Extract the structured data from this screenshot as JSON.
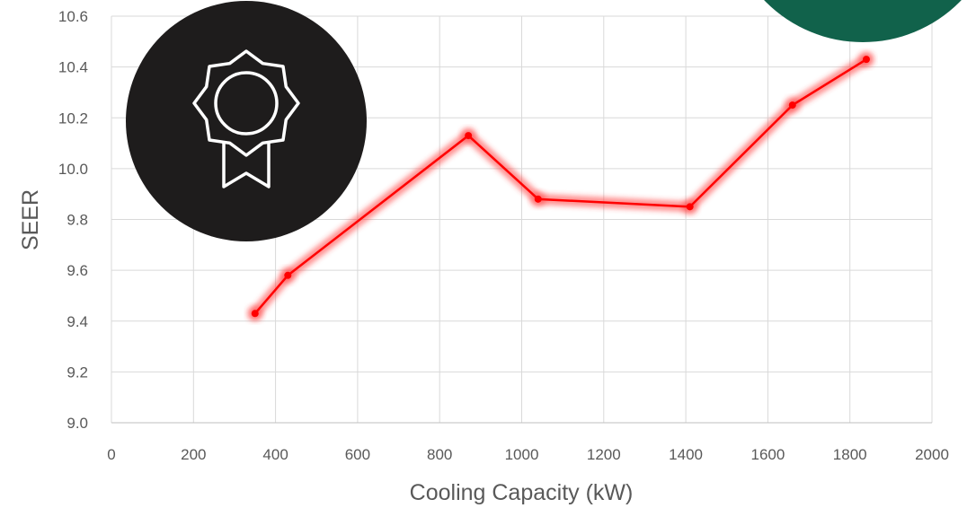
{
  "chart_data": {
    "type": "line",
    "xlabel": "Cooling Capacity (kW)",
    "ylabel": "SEER",
    "xlim": [
      0,
      2000
    ],
    "ylim": [
      9.0,
      10.6
    ],
    "x_ticks": [
      "0",
      "200",
      "400",
      "600",
      "800",
      "1000",
      "1200",
      "1400",
      "1600",
      "1800",
      "2000"
    ],
    "y_ticks": [
      "9.0",
      "9.2",
      "9.4",
      "9.6",
      "9.8",
      "10.0",
      "10.2",
      "10.4",
      "10.6"
    ],
    "grid": true,
    "series": [
      {
        "x": [
          350,
          430,
          870,
          1040,
          1410,
          1660,
          1840
        ],
        "y": [
          9.43,
          9.58,
          10.13,
          9.88,
          9.85,
          10.25,
          10.43
        ],
        "color": "#ff0000",
        "glow_color": "#ff3b3b"
      }
    ]
  },
  "decorations": {
    "badge_circle_color": "#1e1c1c",
    "badge_icon": "award-ribbon-icon",
    "corner_circle_color": "#11624b"
  }
}
